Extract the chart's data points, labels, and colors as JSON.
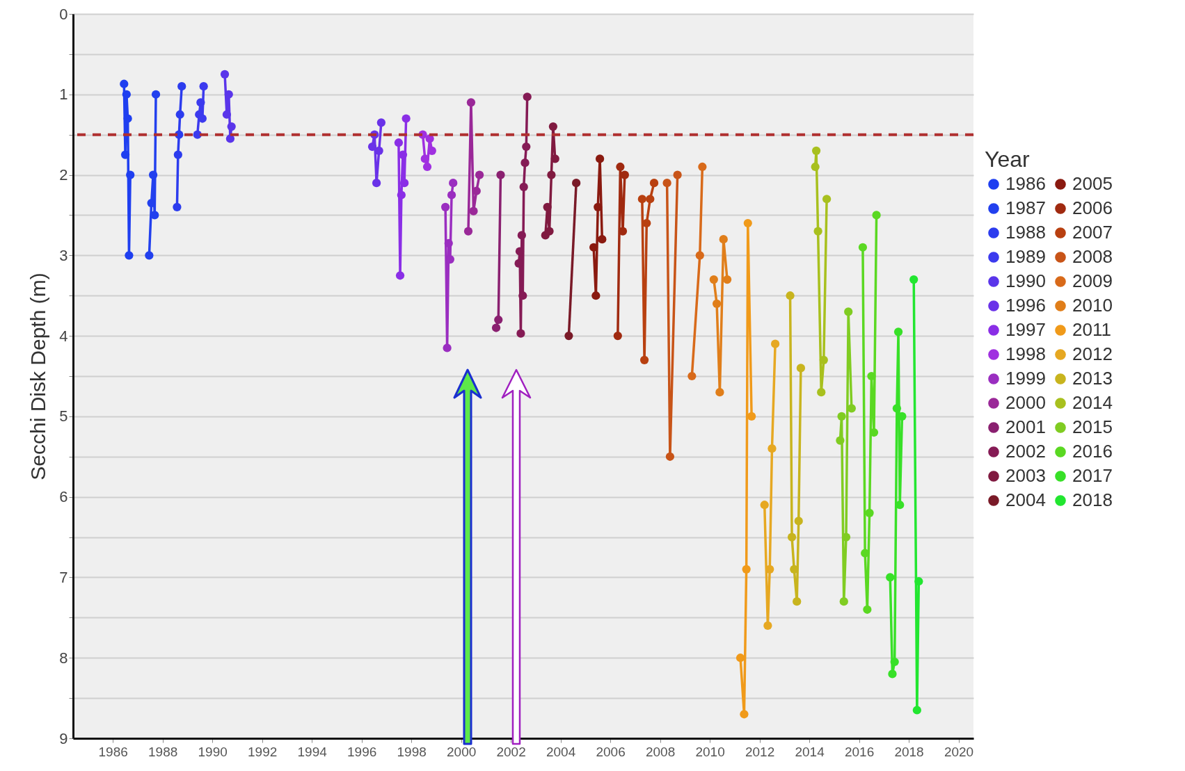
{
  "chart_data": {
    "type": "line",
    "ylabel": "Secchi Disk Depth (m)",
    "legend_title": "Year",
    "legend": "right",
    "marker": "circle",
    "line_style": "solid",
    "grid": "y",
    "xlim": [
      1984.4,
      2020.6
    ],
    "xticks": [
      1986,
      1988,
      1990,
      1992,
      1994,
      1996,
      1998,
      2000,
      2002,
      2004,
      2006,
      2008,
      2010,
      2012,
      2014,
      2016,
      2018,
      2020
    ],
    "ylim": [
      9,
      0
    ],
    "yticks": [
      0,
      {
        "value": 0.5,
        "label": null
      },
      1,
      {
        "value": 1.5,
        "label": null
      },
      2,
      {
        "value": 2.5,
        "label": null
      },
      3,
      {
        "value": 3.5,
        "label": null
      },
      4,
      {
        "value": 4.5,
        "label": null
      },
      5,
      {
        "value": 5.5,
        "label": null
      },
      6,
      {
        "value": 6.5,
        "label": null
      },
      7,
      {
        "value": 7.5,
        "label": null
      },
      8,
      {
        "value": 8.5,
        "label": null
      },
      9
    ],
    "ref_lines": [
      {
        "axis": "y",
        "value": 1.5,
        "color": "#b03030",
        "line_style": "dashed"
      }
    ],
    "series": [
      {
        "name": "1986",
        "color": "#1f3ff0",
        "x": [
          1986.45,
          1986.5,
          1986.55,
          1986.6,
          1986.65,
          1986.7
        ],
        "values": [
          0.87,
          1.75,
          1.0,
          1.3,
          3.0,
          2.0
        ]
      },
      {
        "name": "1987",
        "color": "#2240ee",
        "x": [
          1987.46,
          1987.55,
          1987.62,
          1987.68,
          1987.73
        ],
        "values": [
          3.0,
          2.35,
          2.0,
          2.5,
          1.0
        ]
      },
      {
        "name": "1988",
        "color": "#2c3cee",
        "x": [
          1988.58,
          1988.62,
          1988.66,
          1988.7,
          1988.77
        ],
        "values": [
          2.4,
          1.75,
          1.5,
          1.25,
          0.9
        ]
      },
      {
        "name": "1989",
        "color": "#3c3aee",
        "x": [
          1989.4,
          1989.47,
          1989.53,
          1989.6,
          1989.65
        ],
        "values": [
          1.5,
          1.25,
          1.1,
          1.3,
          0.9
        ]
      },
      {
        "name": "1990",
        "color": "#5a35ea",
        "x": [
          1990.5,
          1990.58,
          1990.66,
          1990.72,
          1990.77
        ],
        "values": [
          0.75,
          1.25,
          1.0,
          1.55,
          1.4
        ]
      },
      {
        "name": "1996",
        "color": "#6a32e8",
        "x": [
          1996.43,
          1996.52,
          1996.6,
          1996.7,
          1996.79
        ],
        "values": [
          1.65,
          1.5,
          2.1,
          1.7,
          1.35
        ]
      },
      {
        "name": "1997",
        "color": "#8a2ee6",
        "x": [
          1997.49,
          1997.55,
          1997.6,
          1997.66,
          1997.72,
          1997.79
        ],
        "values": [
          1.6,
          3.25,
          2.25,
          1.75,
          2.1,
          1.3
        ]
      },
      {
        "name": "1998",
        "color": "#a030e0",
        "x": [
          1998.46,
          1998.55,
          1998.64,
          1998.74,
          1998.83
        ],
        "values": [
          1.5,
          1.8,
          1.9,
          1.55,
          1.7
        ]
      },
      {
        "name": "1999",
        "color": "#9a2ec0",
        "x": [
          1999.37,
          1999.44,
          1999.5,
          1999.56,
          1999.62,
          1999.68
        ],
        "values": [
          2.4,
          4.15,
          2.85,
          3.05,
          2.25,
          2.1
        ]
      },
      {
        "name": "2000",
        "color": "#9a2898",
        "x": [
          2000.29,
          2000.4,
          2000.5,
          2000.62,
          2000.74
        ],
        "values": [
          2.7,
          1.1,
          2.45,
          2.2,
          2.0
        ]
      },
      {
        "name": "2001",
        "color": "#8a2070",
        "x": [
          2001.41,
          2001.5,
          2001.59
        ],
        "values": [
          3.9,
          3.8,
          2.0
        ]
      },
      {
        "name": "2002",
        "color": "#851b55",
        "x": [
          2002.32,
          2002.36,
          2002.4,
          2002.44,
          2002.48,
          2002.52,
          2002.57,
          2002.62,
          2002.66
        ],
        "values": [
          3.1,
          2.95,
          3.97,
          2.75,
          3.5,
          2.15,
          1.85,
          1.65,
          1.03
        ]
      },
      {
        "name": "2003",
        "color": "#801a40",
        "x": [
          2003.39,
          2003.47,
          2003.55,
          2003.63,
          2003.7,
          2003.78
        ],
        "values": [
          2.75,
          2.4,
          2.7,
          2.0,
          1.4,
          1.8
        ]
      },
      {
        "name": "2004",
        "color": "#7a1a28",
        "x": [
          2004.33,
          2004.63
        ],
        "values": [
          4.0,
          2.1
        ]
      },
      {
        "name": "2005",
        "color": "#8a1a10",
        "x": [
          2005.33,
          2005.42,
          2005.5,
          2005.58,
          2005.67
        ],
        "values": [
          2.9,
          3.5,
          2.4,
          1.8,
          2.8
        ]
      },
      {
        "name": "2006",
        "color": "#a02a10",
        "x": [
          2006.3,
          2006.4,
          2006.5,
          2006.58
        ],
        "values": [
          4.0,
          1.9,
          2.7,
          2.0
        ]
      },
      {
        "name": "2007",
        "color": "#b84010",
        "x": [
          2007.28,
          2007.37,
          2007.46,
          2007.6,
          2007.76
        ],
        "values": [
          2.3,
          4.3,
          2.6,
          2.3,
          2.1
        ]
      },
      {
        "name": "2008",
        "color": "#c85418",
        "x": [
          2008.28,
          2008.4,
          2008.7
        ],
        "values": [
          2.1,
          5.5,
          2.0
        ]
      },
      {
        "name": "2009",
        "color": "#d86a1a",
        "x": [
          2009.28,
          2009.6,
          2009.7
        ],
        "values": [
          4.5,
          3.0,
          1.9
        ]
      },
      {
        "name": "2010",
        "color": "#e07e1a",
        "x": [
          2010.16,
          2010.28,
          2010.4,
          2010.55,
          2010.7
        ],
        "values": [
          3.3,
          3.6,
          4.7,
          2.8,
          3.3
        ]
      },
      {
        "name": "2011",
        "color": "#f09a1a",
        "x": [
          2011.23,
          2011.38,
          2011.47,
          2011.53,
          2011.68
        ],
        "values": [
          8.0,
          8.7,
          6.9,
          2.6,
          5.0
        ]
      },
      {
        "name": "2012",
        "color": "#e6a822",
        "x": [
          2012.2,
          2012.33,
          2012.41,
          2012.5,
          2012.63
        ],
        "values": [
          6.1,
          7.6,
          6.9,
          5.4,
          4.1
        ]
      },
      {
        "name": "2013",
        "color": "#c8b41e",
        "x": [
          2013.23,
          2013.3,
          2013.39,
          2013.5,
          2013.57,
          2013.66
        ],
        "values": [
          3.5,
          6.5,
          6.9,
          7.3,
          6.3,
          4.4
        ]
      },
      {
        "name": "2014",
        "color": "#a8c01e",
        "x": [
          2014.24,
          2014.28,
          2014.35,
          2014.48,
          2014.58,
          2014.7
        ],
        "values": [
          1.9,
          1.7,
          2.7,
          4.7,
          4.3,
          2.3
        ]
      },
      {
        "name": "2015",
        "color": "#80cc22",
        "x": [
          2015.24,
          2015.3,
          2015.39,
          2015.48,
          2015.57,
          2015.7
        ],
        "values": [
          5.3,
          5.0,
          7.3,
          6.5,
          3.7,
          4.9
        ]
      },
      {
        "name": "2016",
        "color": "#5ad822",
        "x": [
          2016.15,
          2016.24,
          2016.33,
          2016.42,
          2016.5,
          2016.6,
          2016.7
        ],
        "values": [
          2.9,
          6.7,
          7.4,
          6.2,
          4.5,
          5.2,
          2.5
        ]
      },
      {
        "name": "2017",
        "color": "#38e028",
        "x": [
          2017.25,
          2017.34,
          2017.43,
          2017.52,
          2017.58,
          2017.64,
          2017.73
        ],
        "values": [
          7.0,
          8.2,
          8.05,
          4.9,
          3.95,
          6.1,
          5.0
        ]
      },
      {
        "name": "2018",
        "color": "#22e630",
        "x": [
          2018.2,
          2018.33,
          2018.4
        ],
        "values": [
          3.3,
          8.65,
          7.05
        ]
      }
    ]
  }
}
